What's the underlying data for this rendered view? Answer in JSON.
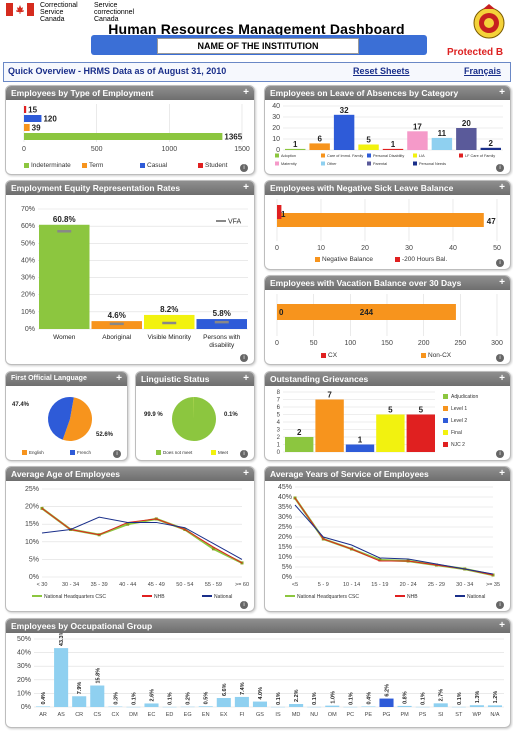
{
  "header": {
    "gov_en": "Correctional Service Canada",
    "gov_fr": "Service correctionnel Canada",
    "title": "Human Resources Management Dashboard",
    "institution": "NAME OF THE INSTITUTION",
    "classification": "Protected B"
  },
  "toolbar": {
    "overview": "Quick Overview - HRMS Data as of August 31, 2010",
    "reset": "Reset Sheets",
    "language": "Français"
  },
  "panels": {
    "employment_type": "Employees by Type of Employment",
    "leave": "Employees on Leave of Absences by Category",
    "equity": "Employment Equity Representation Rates",
    "sick": "Employees with Negative Sick Leave Balance",
    "vacation": "Employees with Vacation Balance over 30 Days",
    "language": "First Official Language",
    "linguistic": "Linguistic Status",
    "grievances": "Outstanding Grievances",
    "age": "Average Age of Employees",
    "service": "Average Years of Service of Employees",
    "occupational": "Employees by Occupational Group"
  },
  "chart_data": [
    {
      "id": "employment_type",
      "type": "bar",
      "orientation": "horizontal",
      "series": [
        {
          "name": "Indeterminate",
          "value": 1365,
          "color": "#8cc63f"
        },
        {
          "name": "Term",
          "value": 39,
          "color": "#f7941d"
        },
        {
          "name": "Casual",
          "value": 120,
          "color": "#2e5bd8"
        },
        {
          "name": "Student",
          "value": 15,
          "color": "#e02020"
        }
      ],
      "xlim": [
        0,
        1500
      ],
      "ticks": [
        "0",
        "500",
        "1000",
        "1500"
      ]
    },
    {
      "id": "leave",
      "type": "bar",
      "values": [
        1,
        6,
        32,
        5,
        1,
        17,
        11,
        20,
        2
      ],
      "colors": [
        "#8cc63f",
        "#f7941d",
        "#2e5bd8",
        "#f2f20f",
        "#e02020",
        "#f59ac9",
        "#8fd0f0",
        "#5a5a9a",
        "#1a2f8a"
      ],
      "legend": [
        "Adoption",
        "Care of Immd. Family",
        "Personal Disability",
        "LIA",
        "LF Care of Family",
        "Maternity",
        "Other",
        "Parental",
        "Personal Needs"
      ],
      "ylim": [
        0,
        40
      ],
      "ticks": [
        "0",
        "10",
        "20",
        "30",
        "40"
      ]
    },
    {
      "id": "equity",
      "type": "bar",
      "categories": [
        "Women",
        "Aboriginal",
        "Visible Minority",
        "Persons with disability"
      ],
      "values": [
        60.8,
        4.6,
        8.2,
        5.8
      ],
      "labels": [
        "60.8%",
        "4.6%",
        "8.2%",
        "5.8%"
      ],
      "colors": [
        "#8cc63f",
        "#f7941d",
        "#f2f20f",
        "#2e5bd8"
      ],
      "vfa": [
        57,
        3,
        3.5,
        4
      ],
      "vfa_label": "VFA",
      "ylim": [
        0,
        70
      ],
      "ticks": [
        "0%",
        "10%",
        "20%",
        "30%",
        "40%",
        "50%",
        "60%",
        "70%"
      ]
    },
    {
      "id": "sick",
      "type": "bar",
      "orientation": "horizontal",
      "series": [
        {
          "name": "Negative Balance",
          "value": 47,
          "color": "#f7941d"
        },
        {
          "name": "-200 Hours Bal.",
          "value": 1,
          "color": "#e02020"
        }
      ],
      "labels": [
        "47",
        "1"
      ],
      "xlim": [
        0,
        50
      ],
      "ticks": [
        "0",
        "10",
        "20",
        "30",
        "40",
        "50"
      ]
    },
    {
      "id": "vacation",
      "type": "bar",
      "orientation": "horizontal",
      "series": [
        {
          "name": "CX",
          "value": 0,
          "color": "#e02020"
        },
        {
          "name": "Non-CX",
          "value": 244,
          "color": "#f7941d"
        }
      ],
      "labels": [
        "0",
        "244"
      ],
      "xlim": [
        0,
        300
      ],
      "ticks": [
        "0",
        "50",
        "100",
        "150",
        "200",
        "250",
        "300"
      ]
    },
    {
      "id": "language",
      "type": "pie",
      "slices": [
        {
          "name": "English",
          "value": 52.6,
          "label": "52.6%",
          "color": "#f7941d"
        },
        {
          "name": "French",
          "value": 47.4,
          "label": "47.4%",
          "color": "#2e5bd8"
        }
      ]
    },
    {
      "id": "linguistic",
      "type": "pie",
      "slices": [
        {
          "name": "Does not meet",
          "value": 99.9,
          "label": "99.9 %",
          "color": "#8cc63f"
        },
        {
          "name": "Meet",
          "value": 0.1,
          "label": "0.1%",
          "color": "#f2f20f"
        }
      ]
    },
    {
      "id": "grievances",
      "type": "bar",
      "values": [
        2,
        7,
        1,
        5,
        5
      ],
      "labels": [
        "2",
        "7",
        "1",
        "5",
        "5"
      ],
      "colors": [
        "#8cc63f",
        "#f7941d",
        "#2e5bd8",
        "#f2f20f",
        "#e02020"
      ],
      "legend": [
        "Adjudication",
        "Level 1",
        "Level 2",
        "Final",
        "NJC 2"
      ],
      "ylim": [
        0,
        8
      ],
      "ticks": [
        "0",
        "1",
        "2",
        "3",
        "4",
        "5",
        "6",
        "7",
        "8"
      ]
    },
    {
      "id": "age",
      "type": "line",
      "categories": [
        "< 30",
        "30 - 34",
        "35 - 39",
        "40 - 44",
        "45 - 49",
        "50 - 54",
        "55 - 59",
        ">= 60"
      ],
      "series": [
        {
          "name": "National Headquarters CSC",
          "color": "#8cc63f",
          "values": [
            19.5,
            13.5,
            12,
            15,
            16.5,
            13.5,
            8,
            4
          ]
        },
        {
          "name": "NHB",
          "color": "#e02020",
          "values": [
            19.5,
            13.5,
            12,
            15.5,
            16.5,
            13.5,
            8.5,
            4
          ]
        },
        {
          "name": "National",
          "color": "#1a2f8a",
          "values": [
            12.5,
            13.5,
            17,
            15.5,
            15.5,
            14,
            9.5,
            5
          ]
        }
      ],
      "ylim": [
        0,
        25
      ],
      "ticks": [
        "0%",
        "5%",
        "10%",
        "15%",
        "20%",
        "25%"
      ]
    },
    {
      "id": "service",
      "type": "line",
      "categories": [
        "<5",
        "5 - 9",
        "10 - 14",
        "15 - 19",
        "20 - 24",
        "25 - 29",
        "30 - 34",
        ">= 35"
      ],
      "series": [
        {
          "name": "National Headquarters CSC",
          "color": "#8cc63f",
          "values": [
            39.5,
            19,
            14,
            8.5,
            8,
            6,
            4,
            1
          ]
        },
        {
          "name": "NHB",
          "color": "#e02020",
          "values": [
            39.5,
            19,
            14,
            8,
            8,
            6,
            4,
            1
          ]
        },
        {
          "name": "National",
          "color": "#1a2f8a",
          "values": [
            36,
            20,
            16,
            9.5,
            9,
            6.5,
            4,
            1.5
          ]
        }
      ],
      "ylim": [
        0,
        45
      ],
      "ticks": [
        "0%",
        "5%",
        "10%",
        "15%",
        "20%",
        "25%",
        "30%",
        "35%",
        "40%",
        "45%"
      ]
    },
    {
      "id": "occupational",
      "type": "bar",
      "categories": [
        "AR",
        "AS",
        "CR",
        "CS",
        "CX",
        "DM",
        "EC",
        "ED",
        "EG",
        "EN",
        "EX",
        "FI",
        "GS",
        "IS",
        "MD",
        "NU",
        "OM",
        "PC",
        "PE",
        "PG",
        "PM",
        "PS",
        "SI",
        "ST",
        "WP",
        "N/A"
      ],
      "values": [
        0.4,
        43.3,
        7.9,
        15.8,
        0.3,
        0.1,
        2.6,
        0.1,
        0.2,
        0.5,
        6.6,
        7.4,
        4.0,
        0.1,
        2.2,
        0.1,
        1.0,
        0.1,
        0.4,
        6.2,
        0.8,
        0.1,
        2.7,
        0.1,
        1.3,
        1.2
      ],
      "labels": [
        "0.4%",
        "43.3%",
        "7.9%",
        "15.8%",
        "0.3%",
        "0.1%",
        "2.6%",
        "0.1%",
        "0.2%",
        "0.5%",
        "6.6%",
        "7.4%",
        "4.0%",
        "0.1%",
        "2.2%",
        "0.1%",
        "1.0%",
        "0.1%",
        "0.4%",
        "6.2%",
        "0.8%",
        "0.1%",
        "2.7%",
        "0.1%",
        "1.3%",
        "1.2%"
      ],
      "color": "#8fd0f0",
      "highlight_color": "#2e5bd8",
      "highlight_index": 19,
      "ylim": [
        0,
        50
      ],
      "ticks": [
        "0%",
        "10%",
        "20%",
        "30%",
        "40%",
        "50%"
      ]
    }
  ]
}
